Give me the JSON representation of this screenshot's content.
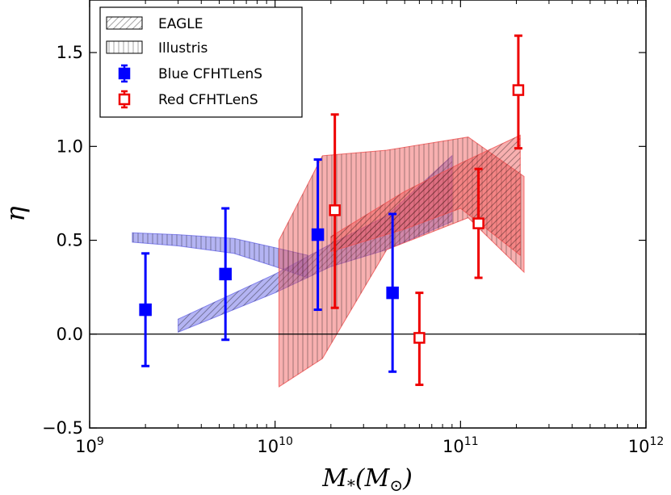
{
  "chart_data": {
    "type": "scatter",
    "title": "",
    "xlabel": "M_*(M_⊙)",
    "ylabel": "η",
    "xscale": "log",
    "xlim": [
      1000000000,
      1000000000000
    ],
    "ylim": [
      -0.5,
      1.78
    ],
    "x_ticks": [
      {
        "value": 1000000000,
        "base": "10",
        "exp": "9"
      },
      {
        "value": 10000000000,
        "base": "10",
        "exp": "10"
      },
      {
        "value": 100000000000,
        "base": "10",
        "exp": "11"
      },
      {
        "value": 1000000000000,
        "base": "10",
        "exp": "12"
      }
    ],
    "y_ticks": [
      {
        "value": -0.5,
        "label": "−0.5"
      },
      {
        "value": 0.0,
        "label": "0.0"
      },
      {
        "value": 0.5,
        "label": "0.5"
      },
      {
        "value": 1.0,
        "label": "1.0"
      },
      {
        "value": 1.5,
        "label": "1.5"
      }
    ],
    "reference_line_y": 0,
    "legend": {
      "position": "top-left",
      "entries": [
        {
          "label": "EAGLE",
          "kind": "hatch-diagonal"
        },
        {
          "label": "Illustris",
          "kind": "hatch-vertical"
        },
        {
          "label": "Blue CFHTLenS",
          "kind": "marker-filled",
          "color": "#0000ff"
        },
        {
          "label": "Red CFHTLenS",
          "kind": "marker-open",
          "color": "#ee0000"
        }
      ]
    },
    "series": [
      {
        "name": "Blue CFHTLenS",
        "color": "#0000ff",
        "marker": "filled-square",
        "points": [
          {
            "x": 2000000000,
            "y": 0.13,
            "ylo": -0.17,
            "yhi": 0.43
          },
          {
            "x": 5400000000,
            "y": 0.32,
            "ylo": -0.03,
            "yhi": 0.67
          },
          {
            "x": 17000000000,
            "y": 0.53,
            "ylo": 0.13,
            "yhi": 0.93
          },
          {
            "x": 43000000000,
            "y": 0.22,
            "ylo": -0.2,
            "yhi": 0.64
          }
        ]
      },
      {
        "name": "Red CFHTLenS",
        "color": "#ee0000",
        "marker": "open-square",
        "points": [
          {
            "x": 21000000000,
            "y": 0.66,
            "ylo": 0.14,
            "yhi": 1.17
          },
          {
            "x": 60000000000,
            "y": -0.02,
            "ylo": -0.27,
            "yhi": 0.22
          },
          {
            "x": 125000000000,
            "y": 0.59,
            "ylo": 0.3,
            "yhi": 0.88
          },
          {
            "x": 205000000000,
            "y": 1.3,
            "ylo": 0.99,
            "yhi": 1.59
          }
        ]
      }
    ],
    "bands": [
      {
        "name": "Illustris",
        "population": "Blue",
        "color": "#6a6ae8",
        "opacity": 0.5,
        "hatch": "vertical",
        "x": [
          1700000000,
          3000000000,
          6000000000,
          10000000000,
          15000000000
        ],
        "upper": [
          0.54,
          0.53,
          0.51,
          0.46,
          0.42
        ],
        "lower": [
          0.49,
          0.47,
          0.43,
          0.36,
          0.3
        ]
      },
      {
        "name": "EAGLE",
        "population": "Blue",
        "color": "#6a6ae8",
        "opacity": 0.5,
        "hatch": "diagonal",
        "x": [
          3000000000,
          10000000000,
          20000000000,
          40000000000,
          90000000000
        ],
        "upper": [
          0.08,
          0.32,
          0.48,
          0.63,
          0.95
        ],
        "lower": [
          0.01,
          0.22,
          0.36,
          0.45,
          0.6
        ]
      },
      {
        "name": "Illustris",
        "population": "Red",
        "color": "#f05050",
        "opacity": 0.45,
        "hatch": "vertical",
        "x": [
          10500000000,
          18000000000,
          40000000000,
          110000000000,
          220000000000
        ],
        "upper": [
          0.5,
          0.95,
          0.98,
          1.05,
          0.84
        ],
        "lower": [
          -0.28,
          -0.13,
          0.45,
          0.62,
          0.33
        ]
      },
      {
        "name": "EAGLE",
        "population": "Red",
        "color": "#f05050",
        "opacity": 0.45,
        "hatch": "diagonal",
        "x": [
          20000000000,
          50000000000,
          100000000000,
          210000000000
        ],
        "upper": [
          0.52,
          0.76,
          0.91,
          1.06
        ],
        "lower": [
          0.44,
          0.56,
          0.67,
          0.42
        ]
      }
    ]
  }
}
